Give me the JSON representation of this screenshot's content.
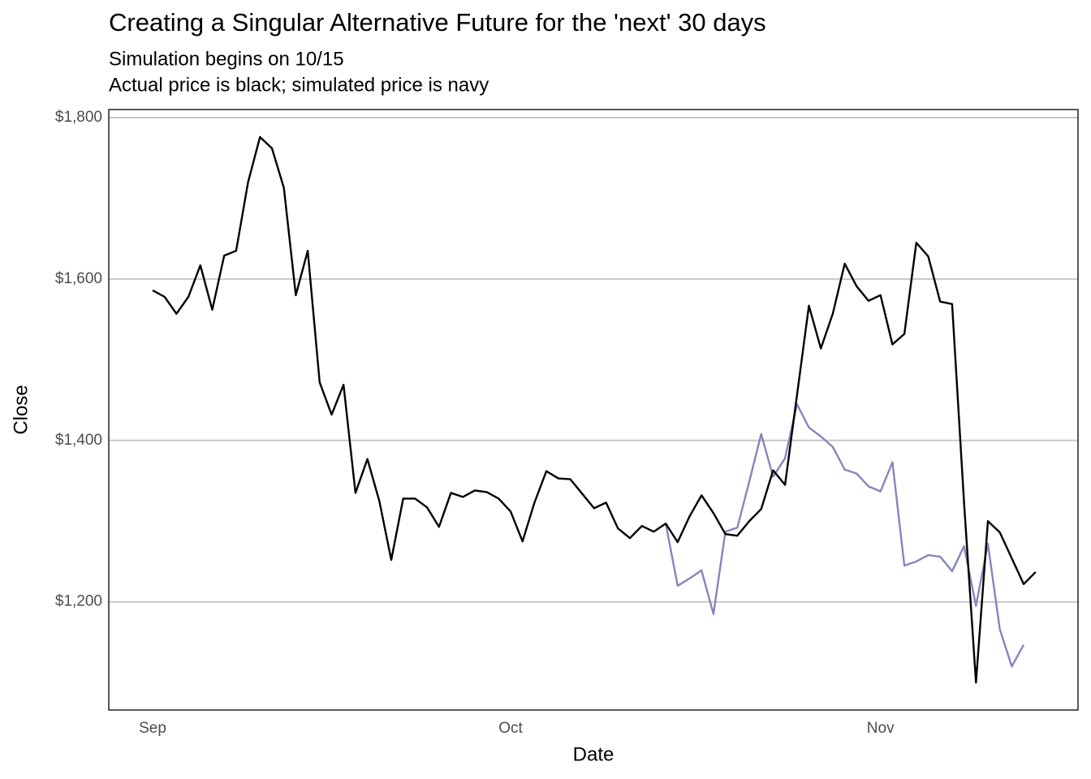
{
  "chart_data": {
    "type": "line",
    "title": "Creating a Singular Alternative Future for the 'next' 30 days",
    "subtitle": [
      "Simulation begins on 10/15",
      "Actual price is black; simulated price is navy"
    ],
    "x_label": "Date",
    "y_label": "Close",
    "categories": [
      "Sep",
      null,
      null,
      null,
      null,
      null,
      null,
      null,
      null,
      null,
      null,
      null,
      null,
      null,
      null,
      null,
      null,
      null,
      null,
      null,
      null,
      null,
      null,
      null,
      null,
      null,
      null,
      null,
      null,
      null,
      "Oct",
      null,
      null,
      null,
      null,
      null,
      null,
      null,
      null,
      null,
      null,
      null,
      null,
      null,
      null,
      null,
      null,
      null,
      null,
      null,
      null,
      null,
      null,
      null,
      null,
      null,
      null,
      null,
      null,
      null,
      null,
      "Nov",
      null,
      null,
      null,
      null,
      null,
      null,
      null,
      null,
      null,
      null,
      null,
      null,
      null
    ],
    "series": [
      {
        "color": "#000000",
        "values": [
          1586,
          1578,
          1557,
          1578,
          1617,
          1562,
          1629,
          1635,
          1720,
          1776,
          1762,
          1713,
          1580,
          1635,
          1472,
          1432,
          1469,
          1335,
          1377,
          1325,
          1252,
          1328,
          1328,
          1317,
          1293,
          1335,
          1330,
          1338,
          1336,
          1328,
          1312,
          1275,
          1323,
          1362,
          1353,
          1352,
          1334,
          1316,
          1323,
          1291,
          1279,
          1294,
          1287,
          1297,
          1274,
          1306,
          1332,
          1310,
          1284,
          1282,
          1300,
          1315,
          1363,
          1345,
          1456,
          1567,
          1514,
          1557,
          1619,
          1591,
          1573,
          1580,
          1519,
          1532,
          1645,
          1628,
          1572,
          1569,
          1323,
          1100,
          1300,
          1286,
          1254,
          1222,
          1237
        ]
      },
      {
        "color": "#8585bd",
        "values": [
          null,
          null,
          null,
          null,
          null,
          null,
          null,
          null,
          null,
          null,
          null,
          null,
          null,
          null,
          null,
          null,
          null,
          null,
          null,
          null,
          null,
          null,
          null,
          null,
          null,
          null,
          null,
          null,
          null,
          null,
          null,
          null,
          null,
          null,
          null,
          null,
          null,
          null,
          null,
          null,
          null,
          null,
          null,
          1297,
          1220,
          1229,
          1239,
          1185,
          1287,
          1292,
          1349,
          1408,
          1355,
          1378,
          1445,
          1416,
          1405,
          1392,
          1364,
          1359,
          1343,
          1337,
          1373,
          1245,
          1250,
          1258,
          1256,
          1238,
          1269,
          1195,
          1272,
          1166,
          1120,
          1147,
          null
        ]
      }
    ],
    "ylim": [
      1066,
      1810
    ],
    "yticks": [
      {
        "value": 1200,
        "label": "$1,200"
      },
      {
        "value": 1400,
        "label": "$1,400"
      },
      {
        "value": 1600,
        "label": "$1,600"
      },
      {
        "value": 1800,
        "label": "$1,800"
      }
    ],
    "grid": true
  }
}
